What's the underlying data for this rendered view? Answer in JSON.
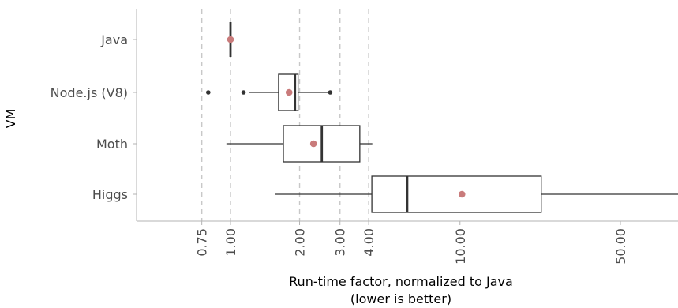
{
  "chart_data": {
    "type": "boxplot",
    "orientation": "horizontal",
    "title": "",
    "xlabel": "Run-time factor, normalized to Java",
    "xlabel_sub": "(lower is better)",
    "ylabel": "VM",
    "x_scale": "log",
    "xlim": [
      0.5,
      100
    ],
    "x_ticks": [
      {
        "value": 0.75,
        "label": "0.75"
      },
      {
        "value": 1.0,
        "label": "1.00"
      },
      {
        "value": 2.0,
        "label": "2.00"
      },
      {
        "value": 3.0,
        "label": "3.00"
      },
      {
        "value": 4.0,
        "label": "4.00"
      },
      {
        "value": 10.0,
        "label": "10.00"
      },
      {
        "value": 50.0,
        "label": "50.00"
      }
    ],
    "reference_lines": [
      0.75,
      1.0,
      2.0,
      3.0,
      4.0
    ],
    "categories": [
      "Java",
      "Node.js (V8)",
      "Moth",
      "Higgs"
    ],
    "boxes": [
      {
        "name": "Java",
        "whisker_low": 1.0,
        "q1": 1.0,
        "median": 1.0,
        "q3": 1.0,
        "whisker_high": 1.0,
        "mean": 1.0,
        "outliers": []
      },
      {
        "name": "Node.js (V8)",
        "whisker_low": 1.2,
        "q1": 1.62,
        "median": 1.91,
        "q3": 1.97,
        "whisker_high": 2.72,
        "mean": 1.8,
        "outliers": [
          0.8,
          1.14,
          2.72
        ]
      },
      {
        "name": "Moth",
        "whisker_low": 0.96,
        "q1": 1.7,
        "median": 2.5,
        "q3": 3.66,
        "whisker_high": 4.15,
        "mean": 2.3,
        "outliers": []
      },
      {
        "name": "Higgs",
        "whisker_low": 1.57,
        "q1": 4.13,
        "median": 5.89,
        "q3": 22.6,
        "whisker_high": 100,
        "mean": 10.2,
        "outliers": []
      }
    ],
    "colors": {
      "box_stroke": "#333333",
      "mean_point": "#c97b7b",
      "ref_line": "#c8c8c8",
      "axis": "#b3b3b3",
      "tick_text": "#4d4d4d"
    },
    "grid": false,
    "legend": "none"
  }
}
